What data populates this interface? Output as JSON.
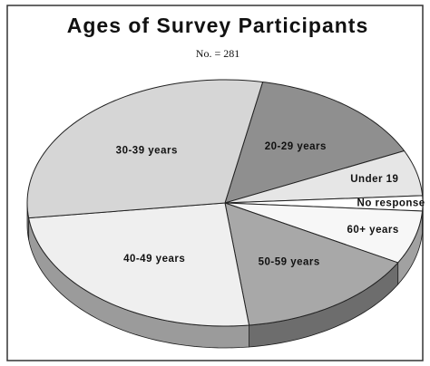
{
  "chart_data": {
    "type": "pie3d",
    "title": "Ages of Survey Participants",
    "subtitle": "No. = 281",
    "categories": [
      "20-29 years",
      "Under 19",
      "No response",
      "60+ years",
      "50-59 years",
      "40-49 years",
      "30-39 years"
    ],
    "values": [
      15,
      6,
      2,
      7,
      15,
      25,
      30
    ],
    "colors": [
      "#8f8f8f",
      "#e6e6e6",
      "#ffffff",
      "#f7f7f7",
      "#a8a8a8",
      "#efefef",
      "#d6d6d6"
    ]
  }
}
